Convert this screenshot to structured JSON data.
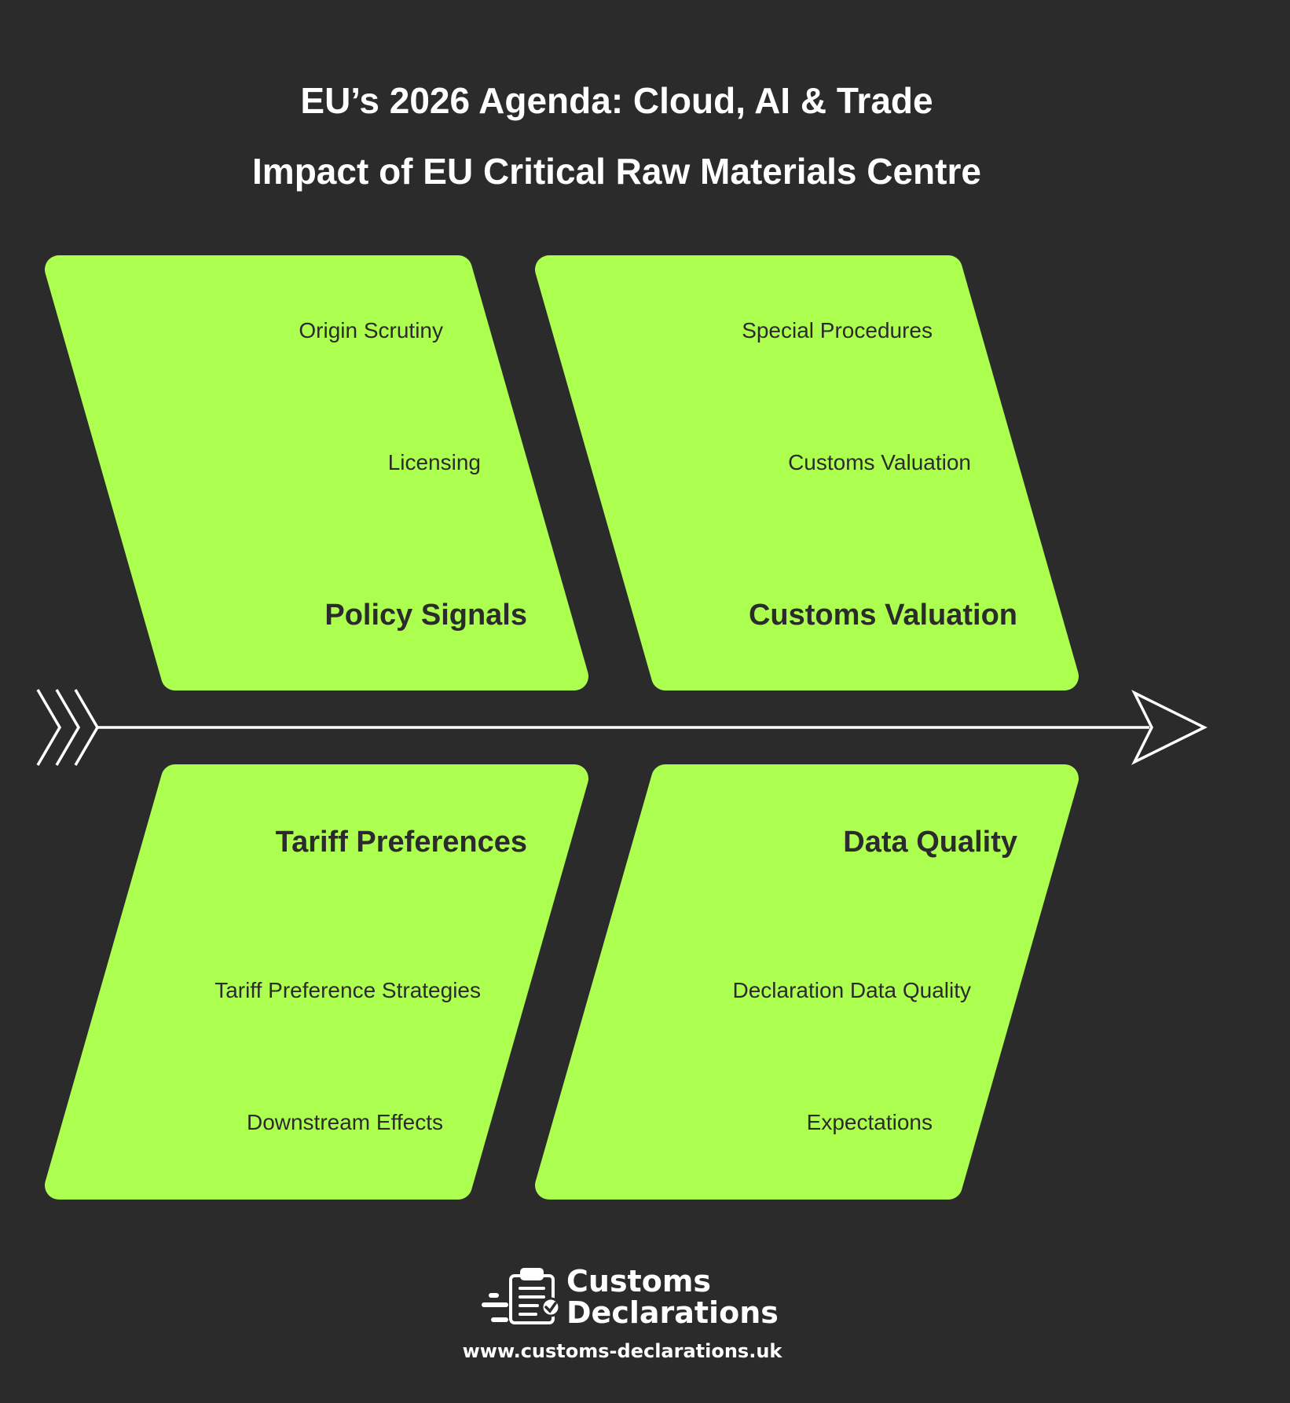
{
  "title": "EU’s 2026 Agenda: Cloud, AI & Trade",
  "subtitle": "Impact of EU Critical Raw Materials Centre",
  "colors": {
    "background": "#2b2b2b",
    "box": "#adff4f",
    "text": "#2b2b2b",
    "spine": "#ffffff"
  },
  "categories": [
    {
      "heading": "Policy Signals",
      "items": [
        "Origin Scrutiny",
        "Licensing"
      ]
    },
    {
      "heading": "Customs Valuation",
      "items": [
        "Special Procedures",
        "Customs Valuation"
      ]
    },
    {
      "heading": "Tariff Preferences",
      "items": [
        "Tariff Preference Strategies",
        "Downstream Effects"
      ]
    },
    {
      "heading": "Data Quality",
      "items": [
        "Declaration Data Quality",
        "Expectations"
      ]
    }
  ],
  "footer": {
    "brand_line1": "Customs",
    "brand_line2": "Declarations",
    "logo_icon": "clipboard-check-icon",
    "url": "www.customs-declarations.uk"
  }
}
